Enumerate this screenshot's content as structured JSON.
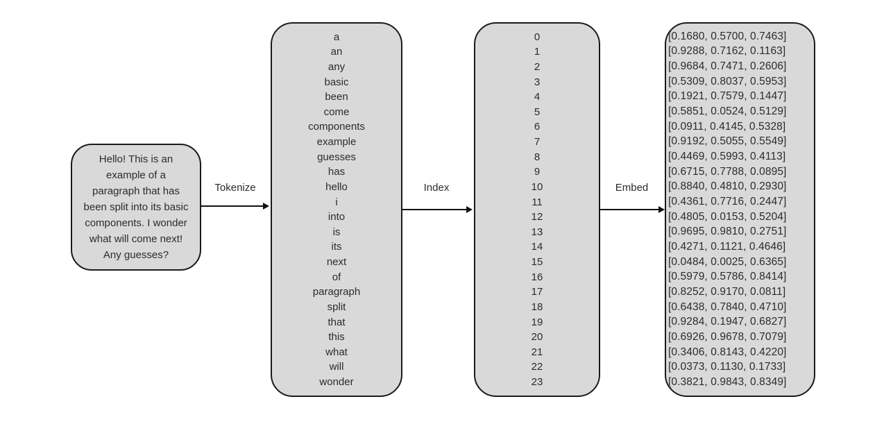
{
  "diagram": {
    "colors": {
      "background": "#ffffff",
      "box_fill": "#d9d9d9",
      "box_border": "#1a1a1a",
      "arrow": "#111111",
      "text": "#2b2b2b"
    },
    "input_box": {
      "lines": [
        "Hello! This is an",
        "example of a",
        "paragraph that has",
        "been split into its basic",
        "components. I wonder",
        "what will come next!",
        "Any guesses?"
      ]
    },
    "arrows": [
      {
        "label": "Tokenize"
      },
      {
        "label": "Index"
      },
      {
        "label": "Embed"
      }
    ],
    "tokens": [
      "a",
      "an",
      "any",
      "basic",
      "been",
      "come",
      "components",
      "example",
      "guesses",
      "has",
      "hello",
      "i",
      "into",
      "is",
      "its",
      "next",
      "of",
      "paragraph",
      "split",
      "that",
      "this",
      "what",
      "will",
      "wonder"
    ],
    "indices": [
      "0",
      "1",
      "2",
      "3",
      "4",
      "5",
      "6",
      "7",
      "8",
      "9",
      "10",
      "11",
      "12",
      "13",
      "14",
      "15",
      "16",
      "17",
      "18",
      "19",
      "20",
      "21",
      "22",
      "23"
    ],
    "embeddings": [
      "[0.1680, 0.5700, 0.7463]",
      "[0.9288, 0.7162, 0.1163]",
      "[0.9684, 0.7471, 0.2606]",
      "[0.5309, 0.8037, 0.5953]",
      "[0.1921, 0.7579, 0.1447]",
      "[0.5851, 0.0524, 0.5129]",
      "[0.0911, 0.4145, 0.5328]",
      "[0.9192, 0.5055, 0.5549]",
      "[0.4469, 0.5993, 0.4113]",
      "[0.6715, 0.7788, 0.0895]",
      "[0.8840, 0.4810, 0.2930]",
      "[0.4361, 0.7716, 0.2447]",
      "[0.4805, 0.0153, 0.5204]",
      "[0.9695, 0.9810, 0.2751]",
      "[0.4271, 0.1121, 0.4646]",
      "[0.0484, 0.0025, 0.6365]",
      "[0.5979, 0.5786, 0.8414]",
      "[0.8252, 0.9170, 0.0811]",
      "[0.6438, 0.7840, 0.4710]",
      "[0.9284, 0.1947, 0.6827]",
      "[0.6926, 0.9678, 0.7079]",
      "[0.3406, 0.8143, 0.4220]",
      "[0.0373, 0.1130, 0.1733]",
      "[0.3821, 0.9843, 0.8349]"
    ]
  }
}
